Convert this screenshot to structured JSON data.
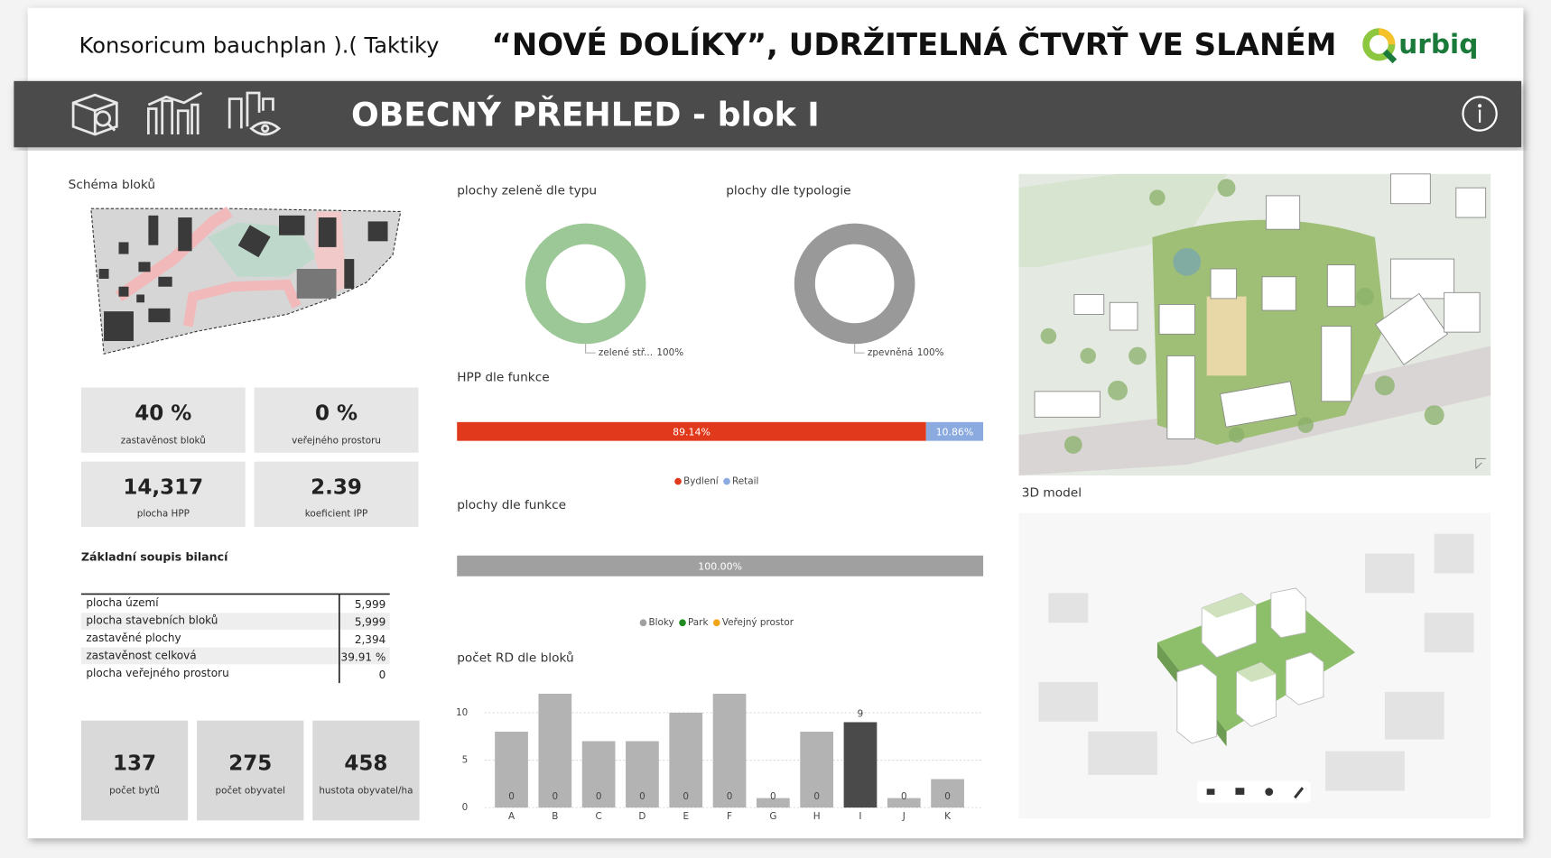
{
  "header": {
    "left_title": "Konsoricum bauchplan ).( Taktiky",
    "title": "“NOVÉ DOLÍKY”, UDRŽITELNÁ ČTVRŤ VE SLANÉM",
    "logo": "urbiq"
  },
  "nav": {
    "title": "OBECNÝ PŘEHLED - blok I"
  },
  "schema": {
    "title": "Schéma bloků"
  },
  "kpis": [
    {
      "value": "40 %",
      "label": "zastavěnost bloků"
    },
    {
      "value": "0 %",
      "label": "veřejného prostoru"
    },
    {
      "value": "14,317",
      "label": "plocha HPP"
    },
    {
      "value": "2.39",
      "label": "koeficient IPP"
    }
  ],
  "table": {
    "title": "Základní soupis bilancí",
    "rows": [
      [
        "plocha území",
        "5,999"
      ],
      [
        "plocha stavebních bloků",
        "5,999"
      ],
      [
        "zastavěné plochy",
        "2,394"
      ],
      [
        "zastavěnost celková",
        "39.91 %"
      ],
      [
        "plocha veřejného prostoru",
        "0"
      ]
    ]
  },
  "stats": [
    {
      "value": "137",
      "label": "počet bytů"
    },
    {
      "value": "275",
      "label": "počet obyvatel"
    },
    {
      "value": "458",
      "label": "hustota obyvatel/ha"
    }
  ],
  "model": {
    "title": "3D model"
  },
  "chart_data": [
    {
      "type": "pie",
      "donut": true,
      "title": "plochy zeleně dle typu",
      "categories": [
        "zelené stř..."
      ],
      "values": [
        100
      ],
      "value_labels": [
        "100%"
      ],
      "colors": [
        "#9cc796"
      ]
    },
    {
      "type": "pie",
      "donut": true,
      "title": "plochy dle typologie",
      "categories": [
        "zpevněná"
      ],
      "values": [
        100
      ],
      "value_labels": [
        "100%"
      ],
      "colors": [
        "#999999"
      ]
    },
    {
      "type": "bar",
      "horizontal": true,
      "stacked": true,
      "title": "HPP dle funkce",
      "xlim": [
        0,
        100
      ],
      "series": [
        {
          "name": "Bydlení",
          "color": "#e1391c",
          "values": [
            89.14
          ],
          "value_labels": [
            "89.14%"
          ]
        },
        {
          "name": "Retail",
          "color": "#8aaae0",
          "values": [
            10.86
          ],
          "value_labels": [
            "10.86%"
          ]
        }
      ]
    },
    {
      "type": "bar",
      "horizontal": true,
      "stacked": true,
      "title": "plochy dle funkce",
      "xlim": [
        0,
        100
      ],
      "series": [
        {
          "name": "Bloky",
          "color": "#a0a0a0",
          "values": [
            100
          ],
          "value_labels": [
            "100.00%"
          ]
        },
        {
          "name": "Park",
          "color": "#1f8a1f",
          "values": [
            0
          ]
        },
        {
          "name": "Veřejný prostor",
          "color": "#f2a516",
          "values": [
            0
          ]
        }
      ]
    },
    {
      "type": "bar",
      "title": "počet RD dle bloků",
      "categories": [
        "A",
        "B",
        "C",
        "D",
        "E",
        "F",
        "G",
        "H",
        "I",
        "J",
        "K"
      ],
      "ylim": [
        0,
        12.5
      ],
      "yticks": [
        0,
        5,
        10
      ],
      "grid": true,
      "highlight_category": "I",
      "highlight_color": "#4a4a4a",
      "series": [
        {
          "color": "#b3b3b3",
          "values": [
            8,
            12,
            7,
            7,
            10,
            12,
            1,
            8,
            9,
            1,
            3
          ]
        },
        {
          "color": "#444444",
          "values": [
            0,
            0,
            0,
            0,
            0,
            0,
            0,
            0,
            null,
            0,
            0
          ]
        }
      ]
    }
  ]
}
